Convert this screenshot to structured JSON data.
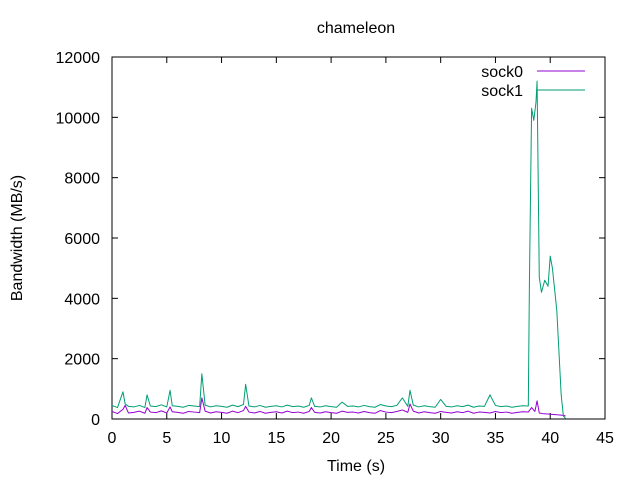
{
  "chart_data": {
    "type": "line",
    "title": "chameleon",
    "xlabel": "Time (s)",
    "ylabel": "Bandwidth (MB/s)",
    "xlim": [
      0,
      45
    ],
    "ylim": [
      0,
      12000
    ],
    "xticks": [
      0,
      5,
      10,
      15,
      20,
      25,
      30,
      35,
      40,
      45
    ],
    "yticks": [
      0,
      2000,
      4000,
      6000,
      8000,
      10000,
      12000
    ],
    "grid": false,
    "legend_position": "top-right",
    "series": [
      {
        "name": "sock0",
        "color": "#9400d3",
        "x": [
          0,
          0.5,
          1,
          1.2,
          1.5,
          2,
          2.5,
          3,
          3.2,
          3.5,
          4,
          4.5,
          5,
          5.3,
          5.5,
          6,
          6.5,
          7,
          7.5,
          8,
          8.2,
          8.5,
          9,
          9.5,
          10,
          10.5,
          11,
          11.5,
          12,
          12.2,
          12.5,
          13,
          13.5,
          14,
          14.5,
          15,
          15.5,
          16,
          16.5,
          17,
          17.5,
          18,
          18.2,
          18.5,
          19,
          19.5,
          20,
          20.5,
          21,
          21.5,
          22,
          22.5,
          23,
          23.5,
          24,
          24.5,
          25,
          25.5,
          26,
          26.5,
          27,
          27.2,
          27.5,
          28,
          28.5,
          29,
          29.5,
          30,
          30.5,
          31,
          31.5,
          32,
          32.5,
          33,
          33.5,
          34,
          34.5,
          35,
          35.5,
          36,
          36.5,
          37,
          37.5,
          38,
          38.3,
          38.6,
          38.8,
          39,
          39.3,
          39.6,
          40,
          40.3,
          40.6,
          41,
          41.2,
          41.4
        ],
        "y": [
          250,
          180,
          320,
          450,
          200,
          220,
          260,
          190,
          380,
          230,
          210,
          270,
          200,
          400,
          240,
          220,
          190,
          250,
          230,
          210,
          700,
          260,
          200,
          240,
          220,
          190,
          260,
          210,
          280,
          420,
          230,
          200,
          250,
          190,
          220,
          240,
          200,
          260,
          210,
          230,
          190,
          250,
          380,
          220,
          200,
          240,
          210,
          190,
          260,
          220,
          230,
          200,
          250,
          210,
          190,
          280,
          230,
          210,
          250,
          300,
          220,
          500,
          260,
          200,
          240,
          210,
          190,
          250,
          220,
          200,
          240,
          210,
          260,
          190,
          230,
          220,
          200,
          250,
          210,
          230,
          190,
          220,
          240,
          230,
          380,
          250,
          600,
          200,
          180,
          170,
          160,
          150,
          140,
          130,
          120,
          100
        ]
      },
      {
        "name": "sock1",
        "color": "#009e73",
        "x": [
          0,
          0.5,
          1,
          1.2,
          1.5,
          2,
          2.5,
          3,
          3.2,
          3.5,
          4,
          4.5,
          5,
          5.3,
          5.5,
          6,
          6.5,
          7,
          7.5,
          8,
          8.2,
          8.5,
          9,
          9.5,
          10,
          10.5,
          11,
          11.5,
          12,
          12.2,
          12.5,
          13,
          13.5,
          14,
          14.5,
          15,
          15.5,
          16,
          16.5,
          17,
          17.5,
          18,
          18.2,
          18.5,
          19,
          19.5,
          20,
          20.5,
          21,
          21.5,
          22,
          22.5,
          23,
          23.5,
          24,
          24.5,
          25,
          25.5,
          26,
          26.5,
          27,
          27.2,
          27.5,
          28,
          28.5,
          29,
          29.5,
          30,
          30.5,
          31,
          31.5,
          32,
          32.5,
          33,
          33.5,
          34,
          34.5,
          35,
          35.5,
          36,
          36.5,
          37,
          37.5,
          38,
          38.1,
          38.3,
          38.5,
          38.7,
          38.8,
          39,
          39.2,
          39.5,
          39.8,
          40,
          40.2,
          40.4,
          40.6,
          40.8,
          41,
          41.2,
          41.4
        ],
        "y": [
          450,
          380,
          900,
          500,
          420,
          400,
          450,
          380,
          800,
          430,
          410,
          470,
          400,
          950,
          440,
          420,
          390,
          450,
          430,
          410,
          1500,
          460,
          400,
          440,
          420,
          390,
          460,
          410,
          480,
          1150,
          430,
          400,
          450,
          390,
          420,
          440,
          400,
          460,
          410,
          430,
          390,
          450,
          700,
          420,
          400,
          440,
          410,
          390,
          560,
          420,
          430,
          400,
          450,
          410,
          390,
          480,
          430,
          410,
          450,
          700,
          420,
          950,
          460,
          400,
          440,
          410,
          390,
          650,
          420,
          400,
          440,
          410,
          460,
          390,
          430,
          420,
          800,
          450,
          410,
          430,
          390,
          420,
          440,
          430,
          4500,
          10300,
          9900,
          10500,
          11200,
          4700,
          4200,
          4600,
          4400,
          5400,
          5000,
          4300,
          3600,
          2200,
          800,
          100,
          20
        ]
      }
    ]
  }
}
